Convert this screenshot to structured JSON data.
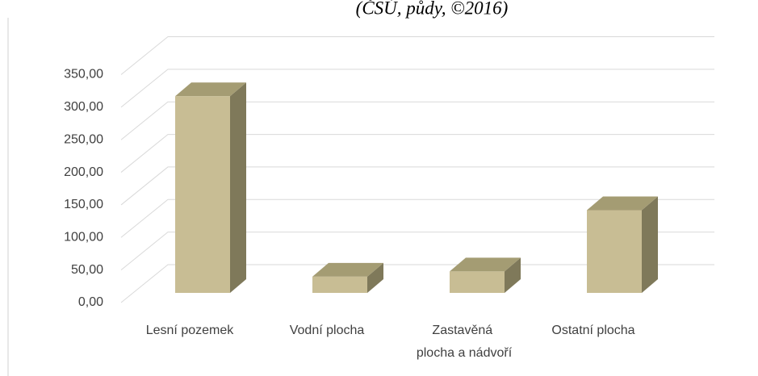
{
  "chart_data": {
    "type": "bar3d",
    "title": "(ČSÚ, půdy, ©2016)",
    "categories": [
      "Lesní pozemek",
      "Vodní plocha",
      "Zastavěná plocha a nádvoří",
      "Ostatní plocha"
    ],
    "values": [
      302,
      25,
      33,
      127
    ],
    "colors": {
      "front": "#c8bd94",
      "side": "#7f795a",
      "top": "#a49c73"
    },
    "ylim": [
      0,
      350
    ],
    "yticks": [
      {
        "value": 0,
        "label": "0,00"
      },
      {
        "value": 50,
        "label": "50,00"
      },
      {
        "value": 100,
        "label": "100,00"
      },
      {
        "value": 150,
        "label": "150,00"
      },
      {
        "value": 200,
        "label": "200,00"
      },
      {
        "value": 250,
        "label": "250,00"
      },
      {
        "value": 300,
        "label": "300,00"
      },
      {
        "value": 350,
        "label": "350,00"
      }
    ],
    "grid": true
  }
}
